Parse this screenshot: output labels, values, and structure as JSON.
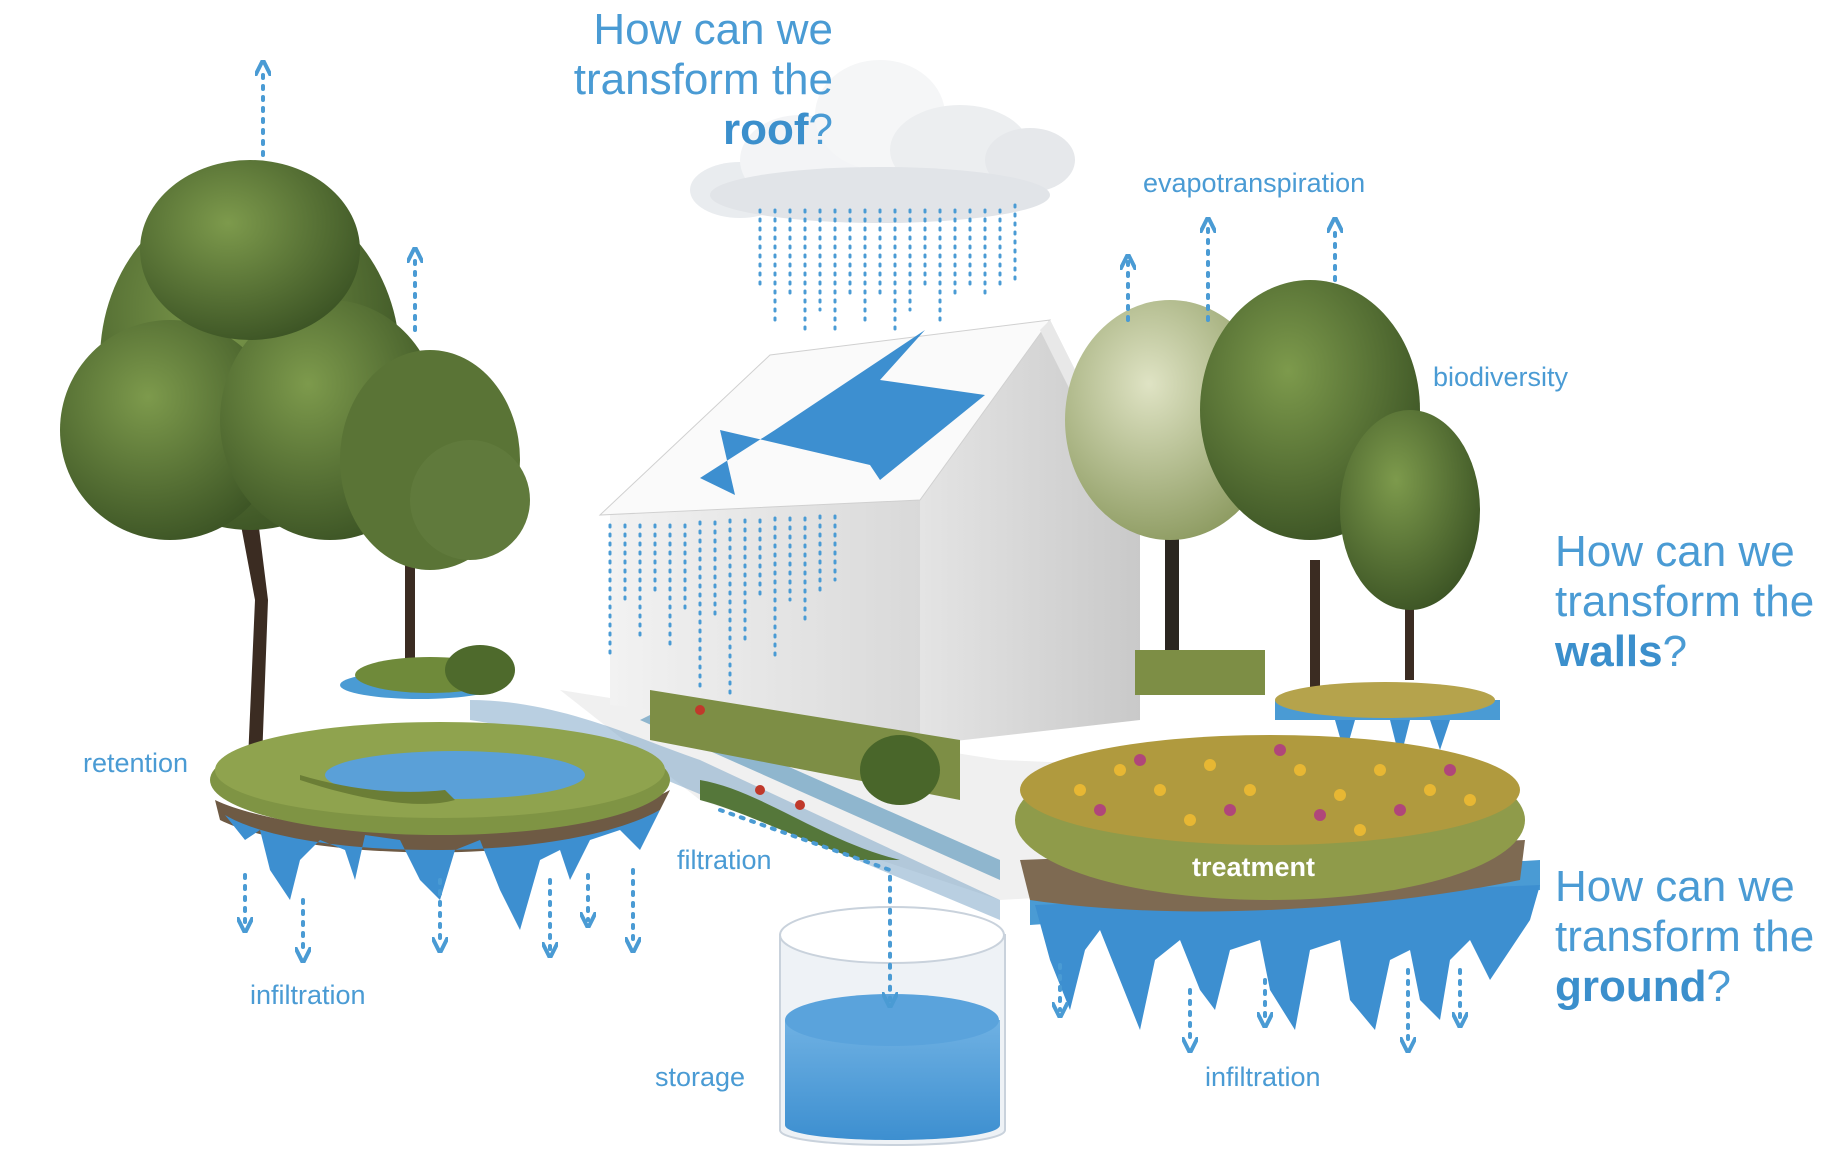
{
  "questions": {
    "roof": {
      "line1": "How can we",
      "line2": "transform the",
      "keyword": "roof",
      "end": "?"
    },
    "walls": {
      "line1": "How can we",
      "line2": "transform the",
      "keyword": "walls",
      "end": "?"
    },
    "ground": {
      "line1": "How can we",
      "line2": "transform the",
      "keyword": "ground",
      "end": "?"
    }
  },
  "labels": {
    "evapotranspiration": "evapotranspiration",
    "biodiversity": "biodiversity",
    "retention": "retention",
    "filtration": "filtration",
    "infiltration_left": "infiltration",
    "infiltration_right": "infiltration",
    "storage": "storage",
    "treatment": "treatment"
  },
  "colors": {
    "accent": "#4a9bd4",
    "water": "#3d8fd0",
    "foliage": "#4f6b34",
    "grass": "#8a9a4a"
  }
}
